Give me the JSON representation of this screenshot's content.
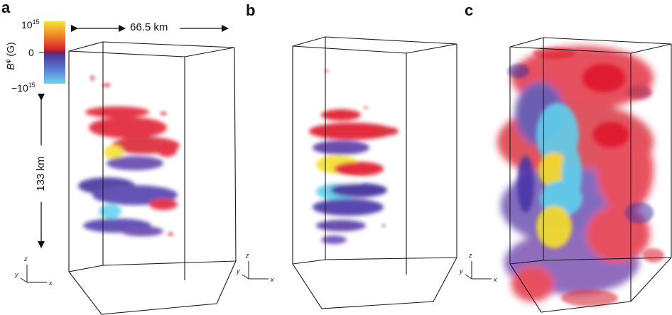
{
  "panels": [
    {
      "letter": "a"
    },
    {
      "letter": "b"
    },
    {
      "letter": "c"
    }
  ],
  "scale": {
    "width_label": "66.5 km",
    "height_label": "133 km"
  },
  "colorbar": {
    "quantity": "B",
    "quantity_superscript": "φ",
    "unit": "(G)",
    "tick_top_base": "10",
    "tick_top_exp": "15",
    "tick_mid": "0",
    "tick_bottom_base": "−10",
    "tick_bottom_exp": "15",
    "colors": {
      "top": "#f7e23a",
      "upper_mid": "#f08a25",
      "positive": "#d8232a",
      "negative": "#4a3aa0",
      "lower_mid": "#5d7fd6",
      "bottom": "#6ed3ee"
    }
  },
  "axes_labels": {
    "z": "z",
    "y": "y",
    "x": "x"
  },
  "field_colors": {
    "positive": "#e0192a",
    "strong": "#f5e02a",
    "negative": "#3a2a9a",
    "strong_negative": "#5fd0ec"
  }
}
